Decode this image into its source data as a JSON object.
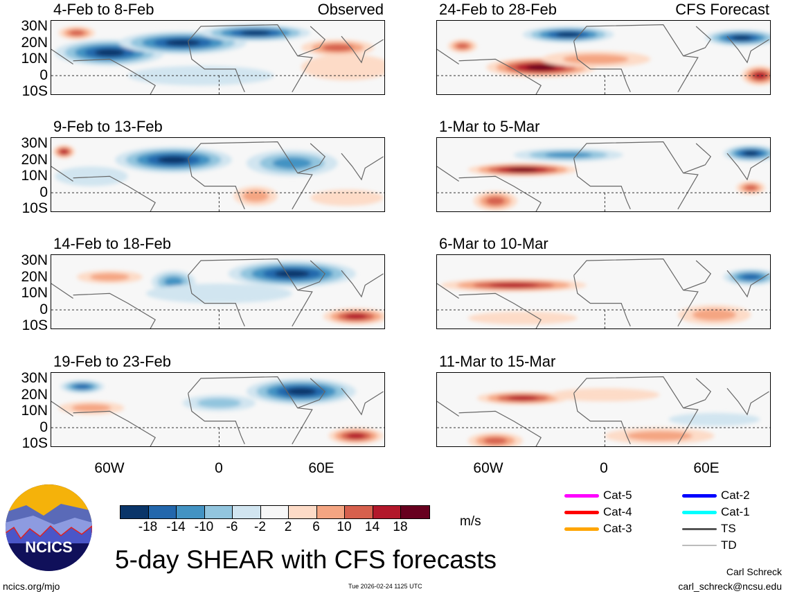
{
  "panels": [
    {
      "title": "4-Feb to 8-Feb",
      "tag": "Observed"
    },
    {
      "title": "9-Feb to 13-Feb"
    },
    {
      "title": "14-Feb to 18-Feb"
    },
    {
      "title": "19-Feb to 23-Feb"
    },
    {
      "title": "24-Feb to 28-Feb",
      "tag": "CFS Forecast"
    },
    {
      "title": "1-Mar to 5-Mar"
    },
    {
      "title": "6-Mar to 10-Mar"
    },
    {
      "title": "11-Mar to 15-Mar"
    }
  ],
  "lat_labels": [
    "30N",
    "20N",
    "10N",
    "0",
    "10S"
  ],
  "lon_labels": [
    "60W",
    "0",
    "60E"
  ],
  "colorbar": {
    "colors": [
      "#0a3569",
      "#2367ac",
      "#4393c3",
      "#92c5de",
      "#d1e5f0",
      "#f7f7f7",
      "#fddbc7",
      "#f4a582",
      "#d6604d",
      "#b2182b",
      "#67001f"
    ],
    "ticks": [
      "-18",
      "-14",
      "-10",
      "-6",
      "-2",
      "2",
      "6",
      "10",
      "14",
      "18"
    ],
    "units": "m/s"
  },
  "legend": [
    {
      "label": "Cat-5",
      "color": "#ff00ff"
    },
    {
      "label": "Cat-4",
      "color": "#ff0000"
    },
    {
      "label": "Cat-3",
      "color": "#ffa500"
    },
    {
      "label": "Cat-2",
      "color": "#0000ff"
    },
    {
      "label": "Cat-1",
      "color": "#00ffff"
    },
    {
      "label": "TS",
      "color": "#555555"
    },
    {
      "label": "TD",
      "color": "#bbbbbb"
    }
  ],
  "logo_text": "NCICS",
  "main_title": "5-day SHEAR with CFS forecasts",
  "footer": {
    "url": "ncics.org/mjo",
    "timestamp": "Tue 2026-02-24 1125 UTC",
    "author": "Carl Schreck",
    "email": "carl_schreck@ncsu.edu"
  }
}
